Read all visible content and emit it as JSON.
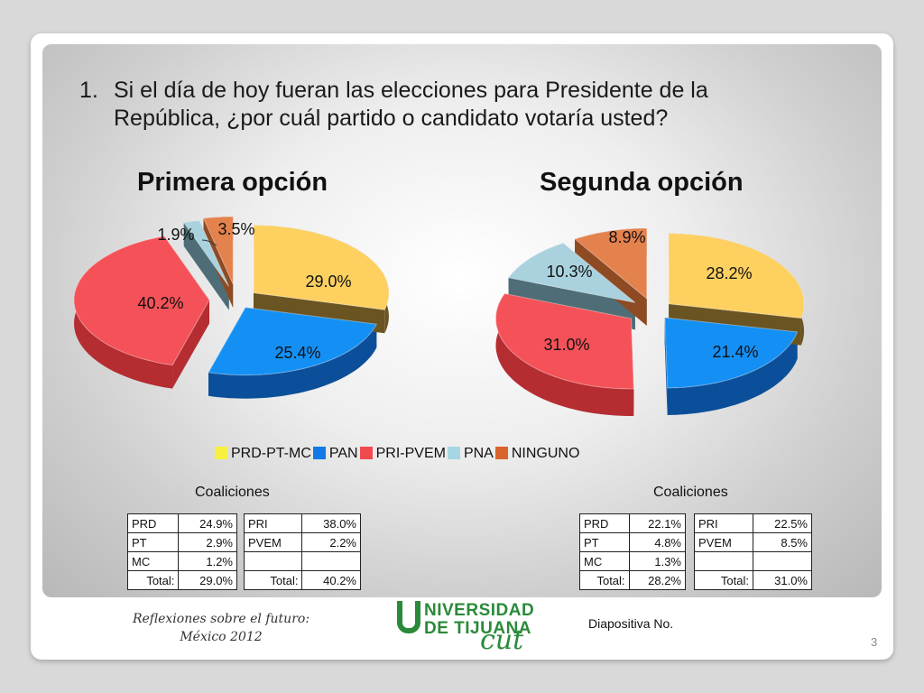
{
  "question": {
    "number": "1.",
    "text": "Si el día de hoy fueran las elecciones para Presidente de la República, ¿por cuál partido o candidato votaría usted?"
  },
  "chart_data": [
    {
      "type": "pie",
      "title": "Primera opción",
      "categories": [
        "PRD-PT-MC",
        "PAN",
        "PRI-PVEM",
        "PNA",
        "NINGUNO"
      ],
      "values": [
        29.0,
        25.4,
        40.2,
        1.9,
        3.5
      ],
      "data_labels": [
        "29.0%",
        "25.4%",
        "40.2%",
        "1.9%",
        "3.5%"
      ]
    },
    {
      "type": "pie",
      "title": "Segunda opción",
      "categories": [
        "PRD-PT-MC",
        "PAN",
        "PRI-PVEM",
        "PNA",
        "NINGUNO"
      ],
      "values": [
        28.2,
        21.4,
        31.0,
        10.3,
        8.9
      ],
      "data_labels": [
        "28.2%",
        "21.4%",
        "31.0%",
        "10.3%",
        "8.9%"
      ]
    }
  ],
  "legend": [
    {
      "name": "PRD-PT-MC",
      "color": "#f7f040"
    },
    {
      "name": "PAN",
      "color": "#1279e8"
    },
    {
      "name": "PRI-PVEM",
      "color": "#f04a4e"
    },
    {
      "name": "PNA",
      "color": "#a6d6e3"
    },
    {
      "name": "NINGUNO",
      "color": "#d9642c"
    }
  ],
  "slice_colors": {
    "top": [
      "#fdd060",
      "#1490f4",
      "#f45258",
      "#a9d2de",
      "#e4824e"
    ],
    "side": [
      "#6a5422",
      "#0b4f9a",
      "#b52c31",
      "#4e6d76",
      "#8e4a23"
    ]
  },
  "coalitions_left": {
    "title": "Coaliciones",
    "table1": {
      "rows": [
        [
          "PRD",
          "24.9%"
        ],
        [
          "PT",
          "2.9%"
        ],
        [
          "MC",
          "1.2%"
        ]
      ],
      "total_label": "Total:",
      "total_value": "29.0%"
    },
    "table2": {
      "rows": [
        [
          "PRI",
          "38.0%"
        ],
        [
          "PVEM",
          "2.2%"
        ],
        [
          "",
          ""
        ]
      ],
      "total_label": "Total:",
      "total_value": "40.2%"
    }
  },
  "coalitions_right": {
    "title": "Coaliciones",
    "table1": {
      "rows": [
        [
          "PRD",
          "22.1%"
        ],
        [
          "PT",
          "4.8%"
        ],
        [
          "MC",
          "1.3%"
        ]
      ],
      "total_label": "Total:",
      "total_value": "28.2%"
    },
    "table2": {
      "rows": [
        [
          "PRI",
          "22.5%"
        ],
        [
          "PVEM",
          "8.5%"
        ],
        [
          "",
          ""
        ]
      ],
      "total_label": "Total:",
      "total_value": "31.0%"
    }
  },
  "footer": {
    "line1": "Reflexiones sobre el futuro:",
    "line2": "México  2012",
    "logo_line1": "NIVERSIDAD",
    "logo_line2": "DE TIJUANA",
    "logo_line3": "cut",
    "slide_label": "Diapositiva No.",
    "page_number": "3"
  }
}
